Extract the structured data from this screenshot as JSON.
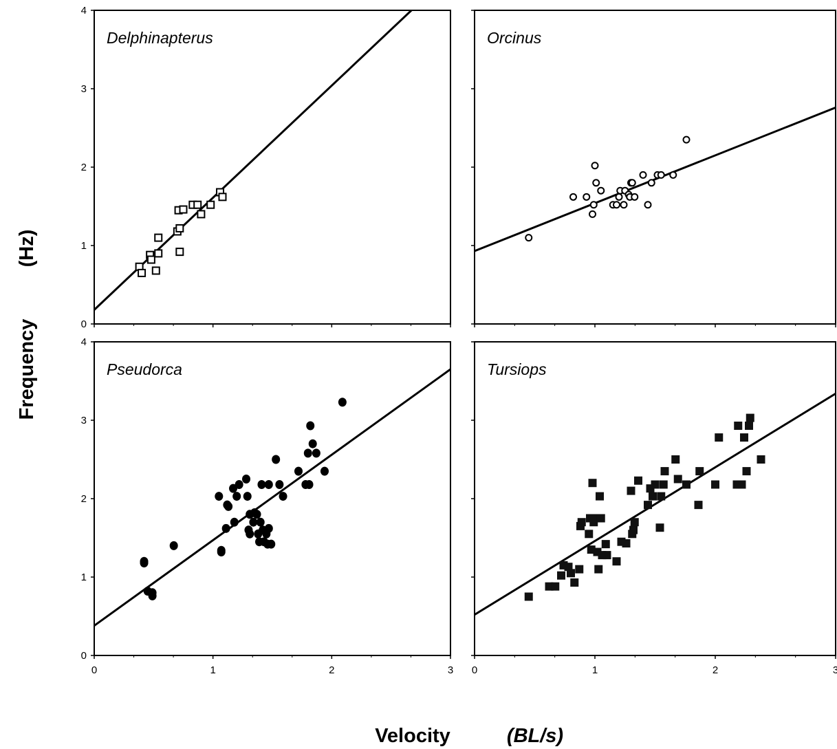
{
  "figure": {
    "ylabel": "Frequency",
    "ylabel_unit": "(Hz)",
    "xlabel": "Velocity",
    "xlabel_unit": "(BL/s)"
  },
  "chart_data": [
    {
      "type": "scatter",
      "title": "Delphinapterus",
      "marker": "open-square",
      "xlim": [
        0,
        3
      ],
      "ylim": [
        0,
        4
      ],
      "xticks": [],
      "yticks": [
        0,
        1,
        2,
        3,
        4
      ],
      "fit_line": {
        "intercept": 0.18,
        "slope": 1.43
      },
      "points": [
        [
          0.38,
          0.73
        ],
        [
          0.4,
          0.65
        ],
        [
          0.47,
          0.88
        ],
        [
          0.48,
          0.82
        ],
        [
          0.52,
          0.68
        ],
        [
          0.54,
          0.9
        ],
        [
          0.54,
          1.1
        ],
        [
          0.7,
          1.18
        ],
        [
          0.71,
          1.45
        ],
        [
          0.72,
          1.22
        ],
        [
          0.72,
          0.92
        ],
        [
          0.75,
          1.46
        ],
        [
          0.83,
          1.52
        ],
        [
          0.87,
          1.52
        ],
        [
          0.9,
          1.4
        ],
        [
          0.98,
          1.52
        ],
        [
          1.06,
          1.68
        ],
        [
          1.08,
          1.62
        ]
      ]
    },
    {
      "type": "scatter",
      "title": "Orcinus",
      "marker": "open-circle",
      "xlim": [
        0,
        3
      ],
      "ylim": [
        0,
        4
      ],
      "xticks": [],
      "yticks": [],
      "fit_line": {
        "intercept": 0.93,
        "slope": 0.61
      },
      "points": [
        [
          0.45,
          1.1
        ],
        [
          0.82,
          1.62
        ],
        [
          0.93,
          1.62
        ],
        [
          0.98,
          1.4
        ],
        [
          0.99,
          1.52
        ],
        [
          1.0,
          2.02
        ],
        [
          1.01,
          1.8
        ],
        [
          1.05,
          1.7
        ],
        [
          1.15,
          1.52
        ],
        [
          1.18,
          1.52
        ],
        [
          1.2,
          1.62
        ],
        [
          1.21,
          1.7
        ],
        [
          1.24,
          1.52
        ],
        [
          1.25,
          1.7
        ],
        [
          1.28,
          1.65
        ],
        [
          1.29,
          1.62
        ],
        [
          1.3,
          1.8
        ],
        [
          1.31,
          1.8
        ],
        [
          1.33,
          1.62
        ],
        [
          1.4,
          1.9
        ],
        [
          1.44,
          1.52
        ],
        [
          1.47,
          1.8
        ],
        [
          1.52,
          1.9
        ],
        [
          1.55,
          1.9
        ],
        [
          1.65,
          1.9
        ],
        [
          1.76,
          2.35
        ]
      ]
    },
    {
      "type": "scatter",
      "title": "Pseudorca",
      "marker": "filled-circle",
      "xlim": [
        0,
        3
      ],
      "ylim": [
        0,
        4
      ],
      "xticks": [
        0,
        1,
        2,
        3
      ],
      "yticks": [
        0,
        1,
        2,
        3,
        4
      ],
      "fit_line": {
        "intercept": 0.38,
        "slope": 1.09
      },
      "points": [
        [
          0.42,
          1.2
        ],
        [
          0.42,
          1.18
        ],
        [
          0.45,
          0.82
        ],
        [
          0.49,
          0.8
        ],
        [
          0.49,
          0.76
        ],
        [
          0.67,
          1.4
        ],
        [
          1.05,
          2.03
        ],
        [
          1.07,
          1.34
        ],
        [
          1.07,
          1.32
        ],
        [
          1.11,
          1.62
        ],
        [
          1.12,
          1.92
        ],
        [
          1.13,
          1.9
        ],
        [
          1.17,
          2.13
        ],
        [
          1.18,
          1.7
        ],
        [
          1.2,
          2.03
        ],
        [
          1.22,
          2.18
        ],
        [
          1.28,
          2.25
        ],
        [
          1.29,
          2.03
        ],
        [
          1.3,
          1.6
        ],
        [
          1.31,
          1.55
        ],
        [
          1.31,
          1.8
        ],
        [
          1.34,
          1.7
        ],
        [
          1.35,
          1.82
        ],
        [
          1.37,
          1.8
        ],
        [
          1.38,
          1.55
        ],
        [
          1.39,
          1.45
        ],
        [
          1.4,
          1.7
        ],
        [
          1.41,
          2.18
        ],
        [
          1.42,
          1.6
        ],
        [
          1.43,
          1.45
        ],
        [
          1.45,
          1.55
        ],
        [
          1.46,
          1.42
        ],
        [
          1.47,
          1.62
        ],
        [
          1.47,
          2.18
        ],
        [
          1.49,
          1.42
        ],
        [
          1.53,
          2.5
        ],
        [
          1.56,
          2.18
        ],
        [
          1.59,
          2.03
        ],
        [
          1.72,
          2.35
        ],
        [
          1.78,
          2.18
        ],
        [
          1.8,
          2.58
        ],
        [
          1.81,
          2.18
        ],
        [
          1.82,
          2.93
        ],
        [
          1.84,
          2.7
        ],
        [
          1.87,
          2.58
        ],
        [
          1.94,
          2.35
        ],
        [
          2.09,
          3.23
        ]
      ]
    },
    {
      "type": "scatter",
      "title": "Tursiops",
      "marker": "filled-square",
      "xlim": [
        0,
        3
      ],
      "ylim": [
        0,
        4
      ],
      "xticks": [
        0,
        1,
        2,
        3
      ],
      "yticks": [],
      "fit_line": {
        "intercept": 0.52,
        "slope": 0.94
      },
      "points": [
        [
          0.45,
          0.75
        ],
        [
          0.62,
          0.88
        ],
        [
          0.67,
          0.88
        ],
        [
          0.72,
          1.02
        ],
        [
          0.74,
          1.15
        ],
        [
          0.78,
          1.13
        ],
        [
          0.8,
          1.05
        ],
        [
          0.83,
          0.93
        ],
        [
          0.87,
          1.1
        ],
        [
          0.88,
          1.65
        ],
        [
          0.89,
          1.7
        ],
        [
          0.95,
          1.55
        ],
        [
          0.96,
          1.75
        ],
        [
          0.97,
          1.35
        ],
        [
          0.98,
          2.2
        ],
        [
          0.99,
          1.7
        ],
        [
          1.0,
          1.75
        ],
        [
          1.02,
          1.32
        ],
        [
          1.03,
          1.1
        ],
        [
          1.04,
          2.03
        ],
        [
          1.05,
          1.75
        ],
        [
          1.06,
          1.28
        ],
        [
          1.09,
          1.42
        ],
        [
          1.1,
          1.28
        ],
        [
          1.18,
          1.2
        ],
        [
          1.22,
          1.45
        ],
        [
          1.26,
          1.43
        ],
        [
          1.3,
          2.1
        ],
        [
          1.31,
          1.55
        ],
        [
          1.32,
          1.6
        ],
        [
          1.33,
          1.7
        ],
        [
          1.36,
          2.23
        ],
        [
          1.44,
          1.92
        ],
        [
          1.46,
          2.13
        ],
        [
          1.48,
          2.03
        ],
        [
          1.5,
          2.18
        ],
        [
          1.54,
          1.63
        ],
        [
          1.55,
          2.03
        ],
        [
          1.57,
          2.18
        ],
        [
          1.58,
          2.35
        ],
        [
          1.67,
          2.5
        ],
        [
          1.69,
          2.25
        ],
        [
          1.76,
          2.18
        ],
        [
          1.86,
          1.92
        ],
        [
          1.87,
          2.35
        ],
        [
          2.0,
          2.18
        ],
        [
          2.03,
          2.78
        ],
        [
          2.18,
          2.18
        ],
        [
          2.19,
          2.93
        ],
        [
          2.22,
          2.18
        ],
        [
          2.24,
          2.78
        ],
        [
          2.26,
          2.35
        ],
        [
          2.28,
          2.93
        ],
        [
          2.29,
          3.03
        ],
        [
          2.38,
          2.5
        ]
      ]
    }
  ]
}
